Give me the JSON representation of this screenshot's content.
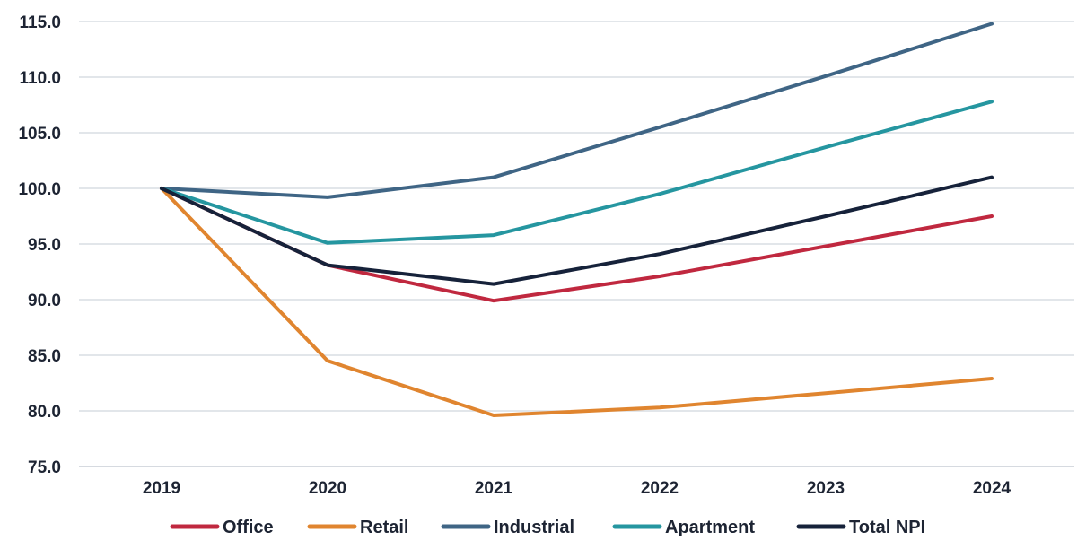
{
  "chart_data": {
    "type": "line",
    "title": "",
    "xlabel": "",
    "ylabel": "",
    "x": [
      "2019",
      "2020",
      "2021",
      "2022",
      "2023",
      "2024"
    ],
    "ylim": [
      75.0,
      115.0
    ],
    "yticks": [
      "75.0",
      "80.0",
      "85.0",
      "90.0",
      "95.0",
      "100.0",
      "105.0",
      "110.0",
      "115.0"
    ],
    "grid": true,
    "legend_position": "bottom",
    "series": [
      {
        "name": "Office",
        "color": "#c0283f",
        "values": [
          100.0,
          93.1,
          89.9,
          92.1,
          94.8,
          97.5
        ]
      },
      {
        "name": "Retail",
        "color": "#e0852f",
        "values": [
          100.0,
          84.5,
          79.6,
          80.3,
          81.6,
          82.9
        ]
      },
      {
        "name": "Industrial",
        "color": "#3f6585",
        "values": [
          100.0,
          99.2,
          101.0,
          105.5,
          110.1,
          114.8
        ]
      },
      {
        "name": "Apartment",
        "color": "#2596a0",
        "values": [
          100.0,
          95.1,
          95.8,
          99.5,
          103.7,
          107.8
        ]
      },
      {
        "name": "Total NPI",
        "color": "#16223a",
        "values": [
          100.0,
          93.1,
          91.4,
          94.1,
          97.5,
          101.0
        ]
      }
    ]
  }
}
